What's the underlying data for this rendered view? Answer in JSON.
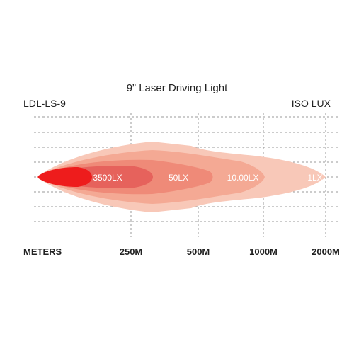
{
  "chart": {
    "title": "9” Laser Driving Light",
    "model": "LDL-LS-9",
    "standard": "ISO LUX"
  },
  "chart_data": {
    "type": "area",
    "title": "9” Laser Driving Light",
    "xlabel": "METERS",
    "x_ticks": [
      "250M",
      "500M",
      "1000M",
      "2000M"
    ],
    "grid": true,
    "zones": [
      {
        "label": "1LX",
        "reach_m": 2000,
        "color": "#f8c8b8"
      },
      {
        "label": "10.00LX",
        "reach_m": 1300,
        "color": "#f4a994"
      },
      {
        "label": "50LX",
        "reach_m": 650,
        "color": "#ef8a78"
      },
      {
        "label": "3500LX",
        "reach_m": 230,
        "color": "#e6625c"
      },
      {
        "label": "",
        "reach_m": 60,
        "color": "#ee1c1c"
      }
    ]
  }
}
